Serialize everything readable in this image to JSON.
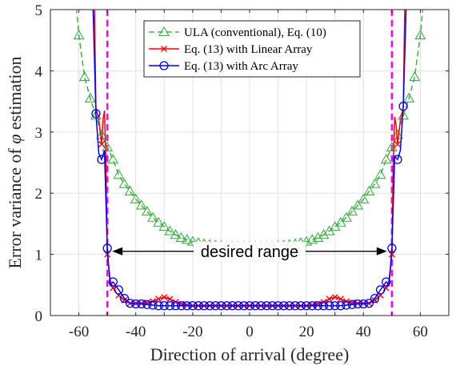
{
  "chart_data": {
    "type": "line",
    "xlabel": "Direction of arrival (degree)",
    "ylabel_prefix": "Error variance of ",
    "ylabel_symbol": "φ",
    "ylabel_suffix": " estimation",
    "xlim": [
      -70,
      70
    ],
    "ylim": [
      0,
      5
    ],
    "xticks": [
      -60,
      -40,
      -20,
      0,
      20,
      40,
      60
    ],
    "yticks": [
      0,
      1,
      2,
      3,
      4,
      5
    ],
    "grid": true,
    "legend_position": "top-center",
    "vlines": [
      -50,
      50
    ],
    "annotation": "desired range",
    "annotation_arrow": [
      -50,
      50
    ],
    "annotation_y": 1.05,
    "series": [
      {
        "name": "ULA (conventional), Eq. (10)",
        "color": "#3cb043",
        "dash": true,
        "marker": "triangle",
        "x": [
          -62,
          -60,
          -58,
          -56,
          -54,
          -52,
          -50,
          -48,
          -46,
          -44,
          -42,
          -40,
          -38,
          -36,
          -34,
          -32,
          -30,
          -28,
          -26,
          -24,
          -22,
          -20,
          -18,
          -16,
          -14,
          -12,
          -10,
          -8,
          -6,
          -4,
          -2,
          0,
          2,
          4,
          6,
          8,
          10,
          12,
          14,
          16,
          18,
          20,
          22,
          24,
          26,
          28,
          30,
          32,
          34,
          36,
          38,
          40,
          42,
          44,
          46,
          48,
          50,
          52,
          54,
          56,
          58,
          60,
          62
        ],
        "y": [
          5.6,
          4.58,
          3.9,
          3.55,
          3.27,
          2.95,
          2.75,
          2.55,
          2.3,
          2.15,
          2.03,
          1.9,
          1.8,
          1.7,
          1.6,
          1.52,
          1.45,
          1.38,
          1.32,
          1.27,
          1.24,
          1.21,
          1.19,
          1.17,
          1.16,
          1.15,
          1.14,
          1.13,
          1.13,
          1.13,
          1.13,
          1.13,
          1.13,
          1.13,
          1.13,
          1.13,
          1.14,
          1.15,
          1.16,
          1.17,
          1.19,
          1.21,
          1.24,
          1.27,
          1.32,
          1.38,
          1.45,
          1.52,
          1.6,
          1.7,
          1.8,
          1.9,
          2.03,
          2.15,
          2.3,
          2.55,
          2.75,
          2.95,
          3.27,
          3.55,
          3.9,
          4.58,
          5.6
        ],
        "marker_x": [
          -60,
          -58,
          -56,
          -54,
          -52,
          -50,
          -48,
          -46,
          -44,
          -42,
          -40,
          -38,
          -36,
          -34,
          -32,
          -30,
          -28,
          -26,
          -24,
          -22,
          -20,
          -18,
          -16,
          -14,
          -12,
          -10,
          -8,
          -6,
          -4,
          -2,
          0,
          2,
          4,
          6,
          8,
          10,
          12,
          14,
          16,
          18,
          20,
          22,
          24,
          26,
          28,
          30,
          32,
          34,
          36,
          38,
          40,
          42,
          44,
          46,
          48,
          50,
          52,
          54,
          56,
          58,
          60
        ]
      },
      {
        "name": "Eq. (13) with Linear Array",
        "color": "#ff0000",
        "dash": false,
        "marker": "x",
        "x": [
          -54.5,
          -54,
          -53,
          -52,
          -51.5,
          -51,
          -50.5,
          -50,
          -49,
          -48,
          -47,
          -46,
          -45,
          -44,
          -43,
          -42,
          -40,
          -38,
          -36,
          -34,
          -32,
          -30,
          -28,
          -26,
          -24,
          -22,
          -20,
          -18,
          -16,
          -14,
          -12,
          -10,
          -8,
          -6,
          -4,
          -2,
          0,
          2,
          4,
          6,
          8,
          10,
          12,
          14,
          16,
          18,
          20,
          22,
          24,
          26,
          28,
          30,
          32,
          34,
          36,
          38,
          40,
          42,
          43,
          44,
          45,
          46,
          47,
          48,
          49,
          50,
          50.5,
          51,
          51.5,
          52,
          53,
          54,
          54.5
        ],
        "y": [
          5.0,
          3.4,
          3.2,
          2.8,
          3.2,
          3.35,
          2.5,
          1.0,
          0.58,
          0.45,
          0.38,
          0.33,
          0.28,
          0.25,
          0.22,
          0.2,
          0.2,
          0.2,
          0.21,
          0.23,
          0.27,
          0.3,
          0.27,
          0.22,
          0.19,
          0.17,
          0.16,
          0.16,
          0.16,
          0.16,
          0.16,
          0.16,
          0.16,
          0.16,
          0.16,
          0.16,
          0.16,
          0.16,
          0.16,
          0.16,
          0.16,
          0.16,
          0.16,
          0.16,
          0.16,
          0.16,
          0.16,
          0.17,
          0.19,
          0.22,
          0.27,
          0.3,
          0.27,
          0.23,
          0.21,
          0.2,
          0.2,
          0.2,
          0.22,
          0.25,
          0.28,
          0.33,
          0.38,
          0.45,
          0.58,
          1.0,
          2.5,
          3.25,
          3.1,
          2.8,
          3.2,
          3.4,
          5.0
        ],
        "marker_x": [
          -52,
          -50,
          -48,
          -46,
          -44,
          -42,
          -40,
          -38,
          -36,
          -34,
          -32,
          -30,
          -28,
          -26,
          -24,
          -22,
          -20,
          -18,
          -16,
          -14,
          -12,
          -10,
          -8,
          -6,
          -4,
          -2,
          0,
          2,
          4,
          6,
          8,
          10,
          12,
          14,
          16,
          18,
          20,
          22,
          24,
          26,
          28,
          30,
          32,
          34,
          36,
          38,
          40,
          42,
          44,
          46,
          48,
          50,
          52
        ]
      },
      {
        "name": "Eq. (13) with Arc Array",
        "color": "#0000ff",
        "dash": false,
        "marker": "circle",
        "x": [
          -55,
          -54,
          -53,
          -52,
          -51,
          -50,
          -49,
          -48,
          -46,
          -44,
          -42,
          -40,
          -38,
          -36,
          -34,
          -32,
          -30,
          -28,
          -26,
          -24,
          -22,
          -20,
          -18,
          -16,
          -14,
          -12,
          -10,
          -8,
          -6,
          -4,
          -2,
          0,
          2,
          4,
          6,
          8,
          10,
          12,
          14,
          16,
          18,
          20,
          22,
          24,
          26,
          28,
          30,
          32,
          34,
          36,
          38,
          40,
          42,
          44,
          46,
          48,
          49,
          50,
          51,
          52,
          53,
          54,
          55
        ],
        "y": [
          5.0,
          3.3,
          2.65,
          2.55,
          2.7,
          1.1,
          0.5,
          0.55,
          0.42,
          0.28,
          0.2,
          0.19,
          0.19,
          0.18,
          0.17,
          0.16,
          0.16,
          0.16,
          0.16,
          0.16,
          0.16,
          0.16,
          0.16,
          0.16,
          0.16,
          0.16,
          0.16,
          0.16,
          0.16,
          0.16,
          0.16,
          0.16,
          0.16,
          0.16,
          0.16,
          0.16,
          0.16,
          0.16,
          0.16,
          0.16,
          0.16,
          0.16,
          0.16,
          0.16,
          0.16,
          0.16,
          0.16,
          0.16,
          0.17,
          0.18,
          0.19,
          0.19,
          0.2,
          0.28,
          0.42,
          0.55,
          0.5,
          1.1,
          2.6,
          2.55,
          2.7,
          3.42,
          5.0
        ],
        "marker_x": [
          -54,
          -52,
          -50,
          -48,
          -46,
          -44,
          -42,
          -40,
          -38,
          -36,
          -34,
          -32,
          -30,
          -28,
          -26,
          -24,
          -22,
          -20,
          -18,
          -16,
          -14,
          -12,
          -10,
          -8,
          -6,
          -4,
          -2,
          0,
          2,
          4,
          6,
          8,
          10,
          12,
          14,
          16,
          18,
          20,
          22,
          24,
          26,
          28,
          30,
          32,
          34,
          36,
          38,
          40,
          42,
          44,
          46,
          48,
          50,
          52,
          54
        ]
      }
    ]
  }
}
